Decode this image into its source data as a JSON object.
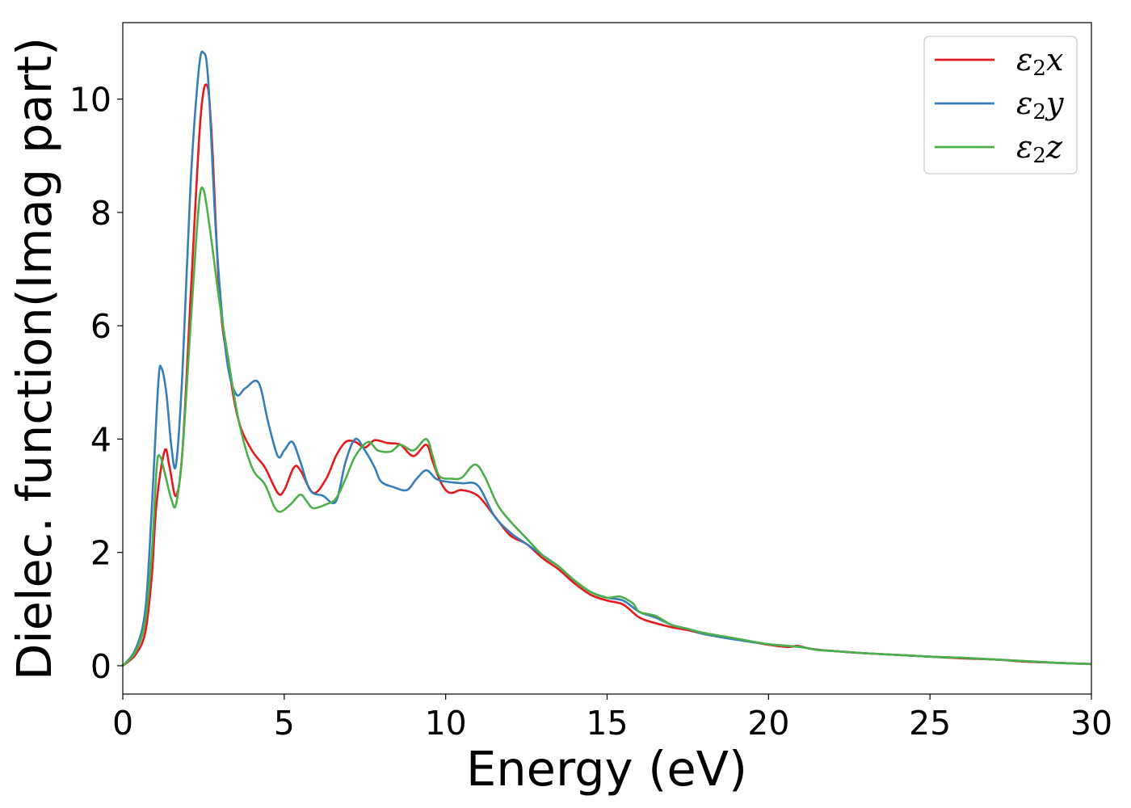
{
  "chart_data": {
    "type": "line",
    "title": "",
    "xlabel": "Energy (eV)",
    "ylabel": "Dielec. function(Imag part)",
    "xlim": [
      0,
      30
    ],
    "ylim": [
      -0.5,
      11.35
    ],
    "xticks": [
      0,
      5,
      10,
      15,
      20,
      25,
      30
    ],
    "yticks": [
      0,
      2,
      4,
      6,
      8,
      10
    ],
    "xtick_labels": [
      "0",
      "5",
      "10",
      "15",
      "20",
      "25",
      "30"
    ],
    "ytick_labels": [
      "0",
      "2",
      "4",
      "6",
      "8",
      "10"
    ],
    "grid": false,
    "legend_position": "top-right",
    "series": [
      {
        "name": "ε2x",
        "symbol": "ε",
        "sub": "2",
        "axis": "x",
        "color": "#e41a1c",
        "points": [
          [
            0,
            0
          ],
          [
            0.4,
            0.2
          ],
          [
            0.7,
            0.6
          ],
          [
            0.9,
            1.6
          ],
          [
            1.05,
            2.9
          ],
          [
            1.3,
            3.8
          ],
          [
            1.45,
            3.5
          ],
          [
            1.65,
            3.0
          ],
          [
            1.85,
            3.8
          ],
          [
            2.1,
            6.5
          ],
          [
            2.4,
            9.6
          ],
          [
            2.6,
            10.25
          ],
          [
            2.75,
            9.4
          ],
          [
            3.0,
            6.5
          ],
          [
            3.3,
            5.2
          ],
          [
            3.6,
            4.3
          ],
          [
            4.0,
            3.8
          ],
          [
            4.4,
            3.5
          ],
          [
            4.8,
            3.05
          ],
          [
            5.0,
            3.1
          ],
          [
            5.3,
            3.5
          ],
          [
            5.5,
            3.45
          ],
          [
            5.9,
            3.05
          ],
          [
            6.3,
            3.3
          ],
          [
            6.6,
            3.7
          ],
          [
            6.9,
            3.95
          ],
          [
            7.2,
            3.95
          ],
          [
            7.5,
            3.85
          ],
          [
            7.8,
            3.98
          ],
          [
            8.2,
            3.93
          ],
          [
            8.6,
            3.9
          ],
          [
            9.0,
            3.7
          ],
          [
            9.4,
            3.9
          ],
          [
            9.6,
            3.6
          ],
          [
            9.8,
            3.3
          ],
          [
            10.0,
            3.1
          ],
          [
            10.2,
            3.05
          ],
          [
            10.5,
            3.1
          ],
          [
            11.0,
            3.0
          ],
          [
            11.5,
            2.65
          ],
          [
            12.0,
            2.3
          ],
          [
            12.5,
            2.15
          ],
          [
            13.0,
            1.9
          ],
          [
            13.5,
            1.7
          ],
          [
            14.0,
            1.45
          ],
          [
            14.5,
            1.25
          ],
          [
            15.0,
            1.15
          ],
          [
            15.5,
            1.08
          ],
          [
            16.0,
            0.85
          ],
          [
            16.5,
            0.75
          ],
          [
            17.0,
            0.68
          ],
          [
            17.5,
            0.63
          ],
          [
            18.0,
            0.56
          ],
          [
            19.0,
            0.47
          ],
          [
            20.0,
            0.37
          ],
          [
            20.6,
            0.33
          ],
          [
            20.9,
            0.35
          ],
          [
            21.3,
            0.3
          ],
          [
            22.0,
            0.26
          ],
          [
            23.0,
            0.22
          ],
          [
            24.0,
            0.19
          ],
          [
            25.0,
            0.16
          ],
          [
            26.0,
            0.13
          ],
          [
            27.0,
            0.11
          ],
          [
            28.0,
            0.07
          ],
          [
            29.0,
            0.05
          ],
          [
            30.0,
            0.03
          ]
        ]
      },
      {
        "name": "ε2y",
        "symbol": "ε",
        "sub": "2",
        "axis": "y",
        "color": "#377eb8",
        "points": [
          [
            0,
            0
          ],
          [
            0.4,
            0.3
          ],
          [
            0.7,
            1.0
          ],
          [
            0.9,
            2.8
          ],
          [
            1.1,
            5.0
          ],
          [
            1.2,
            5.25
          ],
          [
            1.35,
            4.8
          ],
          [
            1.5,
            3.9
          ],
          [
            1.65,
            3.55
          ],
          [
            1.85,
            5.2
          ],
          [
            2.1,
            8.5
          ],
          [
            2.35,
            10.5
          ],
          [
            2.5,
            10.82
          ],
          [
            2.65,
            10.3
          ],
          [
            2.9,
            7.5
          ],
          [
            3.2,
            5.5
          ],
          [
            3.5,
            4.8
          ],
          [
            3.8,
            4.9
          ],
          [
            4.2,
            5.0
          ],
          [
            4.5,
            4.3
          ],
          [
            4.8,
            3.7
          ],
          [
            5.0,
            3.8
          ],
          [
            5.25,
            3.95
          ],
          [
            5.5,
            3.6
          ],
          [
            5.8,
            3.1
          ],
          [
            6.2,
            3.0
          ],
          [
            6.6,
            2.9
          ],
          [
            6.9,
            3.6
          ],
          [
            7.2,
            4.0
          ],
          [
            7.5,
            3.8
          ],
          [
            7.8,
            3.5
          ],
          [
            8.0,
            3.25
          ],
          [
            8.4,
            3.15
          ],
          [
            8.8,
            3.1
          ],
          [
            9.1,
            3.3
          ],
          [
            9.4,
            3.45
          ],
          [
            9.7,
            3.3
          ],
          [
            10.0,
            3.25
          ],
          [
            10.5,
            3.22
          ],
          [
            11.0,
            3.18
          ],
          [
            11.5,
            2.65
          ],
          [
            12.0,
            2.35
          ],
          [
            12.5,
            2.15
          ],
          [
            13.0,
            1.95
          ],
          [
            13.5,
            1.75
          ],
          [
            14.0,
            1.5
          ],
          [
            14.5,
            1.3
          ],
          [
            15.0,
            1.2
          ],
          [
            15.5,
            1.15
          ],
          [
            16.0,
            0.95
          ],
          [
            16.5,
            0.85
          ],
          [
            17.0,
            0.72
          ],
          [
            17.5,
            0.65
          ],
          [
            18.0,
            0.56
          ],
          [
            19.0,
            0.46
          ],
          [
            20.0,
            0.38
          ],
          [
            21.0,
            0.33
          ],
          [
            21.5,
            0.28
          ],
          [
            22.0,
            0.26
          ],
          [
            23.0,
            0.22
          ],
          [
            24.0,
            0.19
          ],
          [
            25.0,
            0.16
          ],
          [
            26.0,
            0.14
          ],
          [
            27.0,
            0.11
          ],
          [
            28.0,
            0.08
          ],
          [
            29.0,
            0.05
          ],
          [
            30.0,
            0.03
          ]
        ]
      },
      {
        "name": "ε2z",
        "symbol": "ε",
        "sub": "2",
        "axis": "z",
        "color": "#4daf4a",
        "points": [
          [
            0,
            0
          ],
          [
            0.4,
            0.25
          ],
          [
            0.7,
            0.8
          ],
          [
            0.9,
            2.0
          ],
          [
            1.05,
            3.5
          ],
          [
            1.15,
            3.7
          ],
          [
            1.3,
            3.4
          ],
          [
            1.5,
            2.95
          ],
          [
            1.65,
            2.85
          ],
          [
            1.85,
            3.8
          ],
          [
            2.1,
            6.0
          ],
          [
            2.35,
            8.1
          ],
          [
            2.5,
            8.4
          ],
          [
            2.7,
            7.7
          ],
          [
            3.0,
            6.4
          ],
          [
            3.3,
            5.3
          ],
          [
            3.6,
            4.3
          ],
          [
            4.0,
            3.5
          ],
          [
            4.4,
            3.2
          ],
          [
            4.7,
            2.8
          ],
          [
            4.9,
            2.72
          ],
          [
            5.2,
            2.85
          ],
          [
            5.5,
            3.02
          ],
          [
            5.7,
            2.9
          ],
          [
            5.9,
            2.78
          ],
          [
            6.3,
            2.85
          ],
          [
            6.6,
            2.95
          ],
          [
            6.9,
            3.3
          ],
          [
            7.2,
            3.7
          ],
          [
            7.6,
            3.95
          ],
          [
            7.9,
            3.8
          ],
          [
            8.3,
            3.78
          ],
          [
            8.6,
            3.9
          ],
          [
            9.0,
            3.8
          ],
          [
            9.4,
            4.0
          ],
          [
            9.6,
            3.7
          ],
          [
            9.8,
            3.35
          ],
          [
            10.2,
            3.3
          ],
          [
            10.5,
            3.32
          ],
          [
            10.9,
            3.55
          ],
          [
            11.2,
            3.35
          ],
          [
            11.6,
            2.85
          ],
          [
            12.0,
            2.55
          ],
          [
            12.5,
            2.25
          ],
          [
            13.0,
            1.95
          ],
          [
            13.5,
            1.75
          ],
          [
            14.0,
            1.5
          ],
          [
            14.5,
            1.3
          ],
          [
            15.0,
            1.2
          ],
          [
            15.4,
            1.22
          ],
          [
            15.8,
            1.1
          ],
          [
            16.0,
            0.95
          ],
          [
            16.5,
            0.88
          ],
          [
            17.0,
            0.72
          ],
          [
            17.5,
            0.65
          ],
          [
            18.0,
            0.58
          ],
          [
            19.0,
            0.48
          ],
          [
            20.0,
            0.38
          ],
          [
            21.0,
            0.33
          ],
          [
            21.5,
            0.28
          ],
          [
            22.0,
            0.26
          ],
          [
            23.0,
            0.22
          ],
          [
            24.0,
            0.19
          ],
          [
            25.0,
            0.16
          ],
          [
            26.0,
            0.14
          ],
          [
            27.0,
            0.11
          ],
          [
            28.0,
            0.08
          ],
          [
            29.0,
            0.05
          ],
          [
            30.0,
            0.03
          ]
        ]
      }
    ]
  }
}
